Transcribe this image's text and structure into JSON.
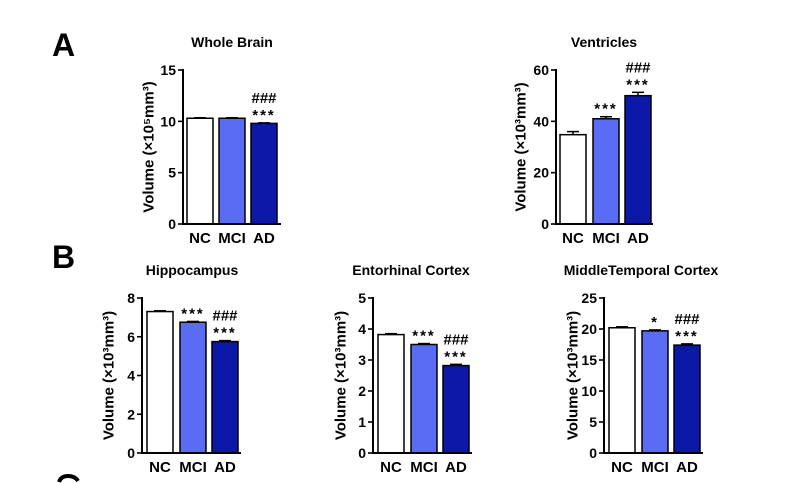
{
  "panel_labels": [
    "A",
    "B"
  ],
  "colors": {
    "NC": "#ffffff",
    "MCI": "#5a6cf3",
    "AD": "#0c18a8",
    "outline": "#000000",
    "background": "#ffffff"
  },
  "chart_data": [
    {
      "type": "bar",
      "title": "Whole Brain",
      "ylabel": "Volume (×10⁵mm³)",
      "categories": [
        "NC",
        "MCI",
        "AD"
      ],
      "values": [
        10.3,
        10.3,
        9.8
      ],
      "errors": [
        0.05,
        0.05,
        0.05
      ],
      "annotations": [
        [],
        [],
        [
          "###",
          "***"
        ]
      ],
      "ylim": [
        0,
        15
      ],
      "yticks": [
        0,
        5,
        10,
        15
      ],
      "grid": false
    },
    {
      "type": "bar",
      "title": "Ventricles",
      "ylabel": "Volume (×10³mm³)",
      "categories": [
        "NC",
        "MCI",
        "AD"
      ],
      "values": [
        34.8,
        41,
        50
      ],
      "errors": [
        1.2,
        0.8,
        1.3
      ],
      "annotations": [
        [],
        [
          "***"
        ],
        [
          "###",
          "***"
        ]
      ],
      "ylim": [
        0,
        60
      ],
      "yticks": [
        0,
        20,
        40,
        60
      ],
      "grid": false
    },
    {
      "type": "bar",
      "title": "Hippocampus",
      "ylabel": "Volume (×10³mm³)",
      "categories": [
        "NC",
        "MCI",
        "AD"
      ],
      "values": [
        7.3,
        6.75,
        5.75
      ],
      "errors": [
        0.04,
        0.04,
        0.05
      ],
      "annotations": [
        [],
        [
          "***"
        ],
        [
          "###",
          "***"
        ]
      ],
      "ylim": [
        0,
        8
      ],
      "yticks": [
        0,
        2,
        4,
        6,
        8
      ],
      "grid": false
    },
    {
      "type": "bar",
      "title": "Entorhinal Cortex",
      "ylabel": "Volume (×10³mm³)",
      "categories": [
        "NC",
        "MCI",
        "AD"
      ],
      "values": [
        3.82,
        3.5,
        2.82
      ],
      "errors": [
        0.03,
        0.03,
        0.04
      ],
      "annotations": [
        [],
        [
          "***"
        ],
        [
          "###",
          "***"
        ]
      ],
      "ylim": [
        0,
        5
      ],
      "yticks": [
        0,
        1,
        2,
        3,
        4,
        5
      ],
      "grid": false
    },
    {
      "type": "bar",
      "title": "MiddleTemporal Cortex",
      "ylabel": "Volume (×10³mm³)",
      "categories": [
        "NC",
        "MCI",
        "AD"
      ],
      "values": [
        20.2,
        19.7,
        17.4
      ],
      "errors": [
        0.15,
        0.15,
        0.2
      ],
      "annotations": [
        [],
        [
          "*"
        ],
        [
          "###",
          "***"
        ]
      ],
      "ylim": [
        0,
        25
      ],
      "yticks": [
        0,
        5,
        10,
        15,
        20,
        25
      ],
      "grid": false
    }
  ]
}
